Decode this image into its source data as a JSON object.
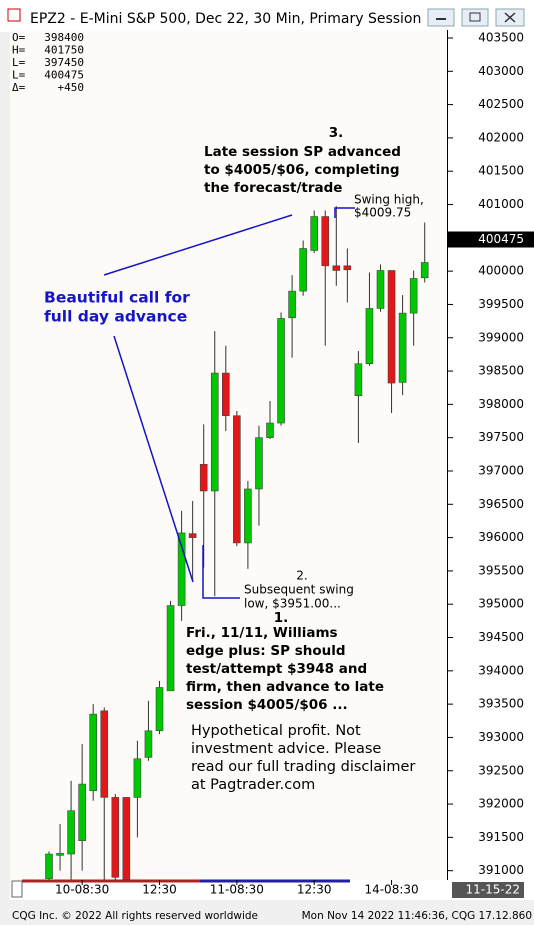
{
  "chart_data": {
    "type": "candlestick",
    "title": "EPZ2 - E-Mini S&P 500, Dec 22, 30 Min, Primary Session",
    "categories": [
      null,
      null,
      null,
      "10-08:30",
      null,
      null,
      null,
      null,
      null,
      null,
      "12:30",
      null,
      null,
      null,
      null,
      null,
      null,
      "11-08:30",
      null,
      null,
      null,
      null,
      null,
      null,
      "12:30",
      null,
      null,
      null,
      null,
      null,
      null,
      "14-08:30",
      null,
      null,
      null
    ],
    "open": [
      390880,
      391230,
      391250,
      391450,
      392200,
      393400,
      392100,
      392100,
      392100,
      392700,
      393100,
      393700,
      394980,
      396060,
      397100,
      396700,
      398470,
      397830,
      395920,
      396730,
      397500,
      397720,
      399300,
      399700,
      400310,
      400820,
      400080,
      400080,
      398130,
      398610,
      399440,
      400010,
      398330,
      399370,
      399900
    ],
    "high": [
      391290,
      391700,
      392350,
      392900,
      393500,
      393450,
      392150,
      392100,
      392950,
      393550,
      393850,
      395050,
      396400,
      396550,
      397700,
      399100,
      398880,
      397900,
      396850,
      397680,
      398050,
      399380,
      399940,
      400460,
      400910,
      400910,
      400975,
      400340,
      398800,
      399980,
      400100,
      400010,
      399640,
      400010,
      400730
    ],
    "low": [
      390860,
      391000,
      390860,
      391000,
      392050,
      390860,
      390860,
      390860,
      391500,
      392650,
      393050,
      393700,
      394750,
      395350,
      395550,
      395120,
      397600,
      395870,
      395530,
      396180,
      397480,
      397680,
      398700,
      399630,
      400270,
      398880,
      399780,
      399530,
      397420,
      398580,
      399390,
      397870,
      398140,
      398880,
      399830
    ],
    "close": [
      391250,
      391260,
      391900,
      392300,
      393350,
      392100,
      390900,
      390870,
      392680,
      393100,
      393750,
      394980,
      396070,
      396000,
      396700,
      398470,
      397830,
      395920,
      396730,
      397500,
      397720,
      399290,
      399700,
      400340,
      400820,
      400080,
      400010,
      400020,
      398610,
      399440,
      400010,
      398320,
      399370,
      399890,
      400130
    ],
    "up_color": "#00c800",
    "down_color": "#e01818",
    "ylim": [
      390860,
      403620
    ],
    "yticks": [
      391000,
      391500,
      392000,
      392500,
      393000,
      393500,
      394000,
      394500,
      395000,
      395500,
      396000,
      396500,
      397000,
      397500,
      398000,
      398500,
      399000,
      399500,
      400000,
      400500,
      401000,
      401500,
      402000,
      402500,
      403000,
      403500
    ],
    "last_price": 400475,
    "date_label": "11-15-22",
    "readout": [
      {
        "label": "O=",
        "value": "398400"
      },
      {
        "label": "H=",
        "value": "401750"
      },
      {
        "label": "L=",
        "value": "397450"
      },
      {
        "label": "L=",
        "value": "400475"
      },
      {
        "label": "Δ=",
        "value": "+450"
      }
    ],
    "annotations": [
      {
        "lines": [
          "3.",
          "Late session SP advanced",
          "to $4005/$06, completing",
          "the forecast/trade"
        ]
      },
      {
        "lines": [
          "Swing high,",
          "$4009.75"
        ]
      },
      {
        "lines": [
          "Beautiful call for",
          "full day advance"
        ]
      },
      {
        "lines": [
          "2.",
          "Subsequent swing",
          "low, $3951.00..."
        ]
      },
      {
        "lines": [
          "1.",
          "Fri., 11/11, Williams",
          "edge plus: SP should",
          "test/attempt $3948 and",
          "firm, then advance to late",
          "session $4005/$06 ..."
        ]
      },
      {
        "lines": [
          "Hypothetical profit. Not",
          "investment advice. Please",
          "read our full trading disclaimer",
          "at Pagtrader.com"
        ]
      }
    ],
    "footer_left": "CQG Inc. © 2022 All rights reserved worldwide",
    "footer_right": "Mon Nov 14 2022 11:46:36, CQG 17.12.860"
  }
}
